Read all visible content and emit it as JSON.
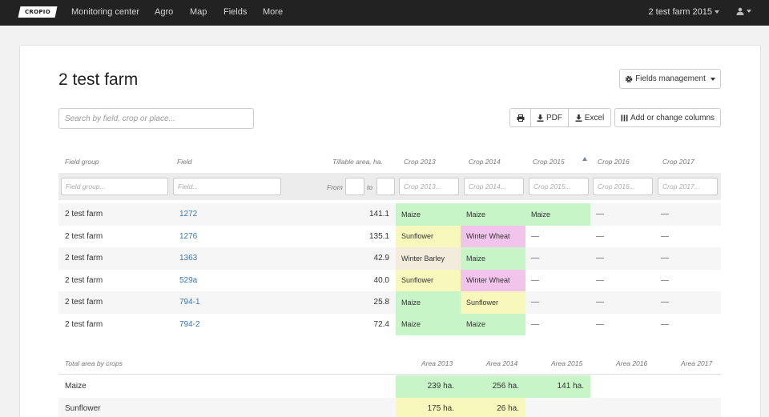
{
  "nav": {
    "logo": "CROPIO",
    "items": [
      "Monitoring center",
      "Agro",
      "Map",
      "Fields",
      "More"
    ],
    "farm_select": "2 test farm 2015"
  },
  "page": {
    "title": "2 test farm",
    "fields_management": "Fields management",
    "search_placeholder": "Search by field, crop or place...",
    "pdf": "PDF",
    "excel": "Excel",
    "columns": "Add or change columns"
  },
  "table": {
    "headers": {
      "group": "Field group",
      "field": "Field",
      "area": "Tillable area, ha.",
      "crops": [
        "Crop 2013",
        "Crop 2014",
        "Crop 2015",
        "Crop 2016",
        "Crop 2017"
      ]
    },
    "filters": {
      "group": "Field group...",
      "field": "Field...",
      "from": "From",
      "to": "to",
      "crops": [
        "Crop 2013...",
        "Crop 2014...",
        "Crop 2015...",
        "Crop 2016...",
        "Crop 2017..."
      ]
    },
    "dash": "—",
    "rows": [
      {
        "group": "2 test farm",
        "field": "1272",
        "area": "141.1",
        "crops": [
          "Maize",
          "Maize",
          "Maize",
          "",
          ""
        ]
      },
      {
        "group": "2 test farm",
        "field": "1276",
        "area": "135.1",
        "crops": [
          "Sunflower",
          "Winter Wheat",
          "",
          "",
          ""
        ]
      },
      {
        "group": "2 test farm",
        "field": "1363",
        "area": "42.9",
        "crops": [
          "Winter Barley",
          "Maize",
          "",
          "",
          ""
        ]
      },
      {
        "group": "2 test farm",
        "field": "529a",
        "area": "40.0",
        "crops": [
          "Sunflower",
          "Winter Wheat",
          "",
          "",
          ""
        ]
      },
      {
        "group": "2 test farm",
        "field": "794-1",
        "area": "25.8",
        "crops": [
          "Maize",
          "Sunflower",
          "",
          "",
          ""
        ]
      },
      {
        "group": "2 test farm",
        "field": "794-2",
        "area": "72.4",
        "crops": [
          "Maize",
          "Maize",
          "",
          "",
          ""
        ]
      }
    ]
  },
  "totals": {
    "label": "Total area by crops",
    "headers": [
      "Area 2013",
      "Area 2014",
      "Area 2015",
      "Area 2016",
      "Area 2017"
    ],
    "rows": [
      {
        "crop": "Maize",
        "areas": [
          "239 ha.",
          "256 ha.",
          "141 ha.",
          "",
          ""
        ]
      },
      {
        "crop": "Sunflower",
        "areas": [
          "175 ha.",
          "26 ha.",
          "",
          "",
          ""
        ]
      }
    ]
  },
  "crop_colors": {
    "Maize": "#c8f5c8",
    "Sunflower": "#f8f8bc",
    "Winter Wheat": "#f2c4ec",
    "Winter Barley": "#f3ecdc"
  }
}
